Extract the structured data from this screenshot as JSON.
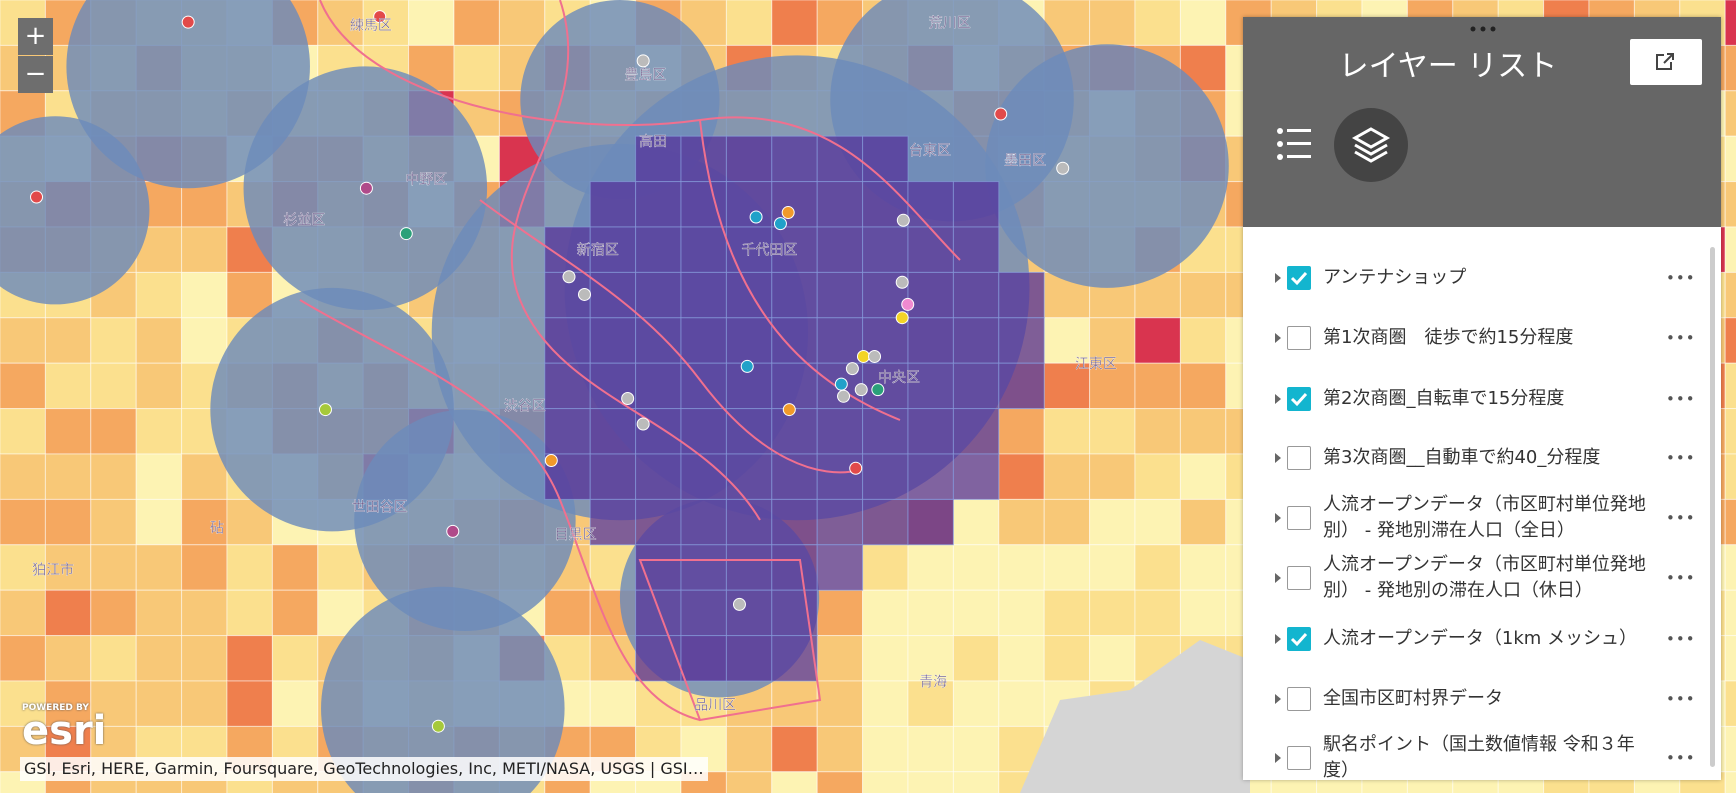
{
  "zoom": {
    "in": "+",
    "out": "−"
  },
  "panel": {
    "title": "レイヤー リスト",
    "layers": [
      {
        "label": "アンテナショップ",
        "checked": true
      },
      {
        "label": "第1次商圏　徒歩で約15分程度",
        "checked": false
      },
      {
        "label": "第2次商圏_自転車で15分程度",
        "checked": true
      },
      {
        "label": "第3次商圏__自動車で約40_分程度",
        "checked": false
      },
      {
        "label": "人流オープンデータ（市区町村単位発地別） - 発地別滞在人口（全日）",
        "checked": false
      },
      {
        "label": "人流オープンデータ（市区町村単位発地別） - 発地別の滞在人口（休日）",
        "checked": false
      },
      {
        "label": "人流オープンデータ（1km メッシュ）",
        "checked": true
      },
      {
        "label": "全国市区町村界データ",
        "checked": false
      },
      {
        "label": "駅名ポイント（国土数値情報 令和３年度）",
        "checked": false
      }
    ]
  },
  "map": {
    "labels": [
      "練馬区",
      "荒川区",
      "豊島区",
      "台東区",
      "墨田区",
      "中野区",
      "杉並区",
      "新宿区",
      "千代田区",
      "中央区",
      "江東区",
      "渋谷区",
      "目黒区",
      "世田谷区",
      "砧",
      "狛江市",
      "品川区",
      "青海",
      "高田"
    ]
  },
  "logo": {
    "powered_by": "POWERED BY",
    "name": "esri"
  },
  "attribution": "GSI, Esri, HERE, Garmin, Foursquare, GeoTechnologies, Inc, METI/NASA, USGS | GSI…"
}
